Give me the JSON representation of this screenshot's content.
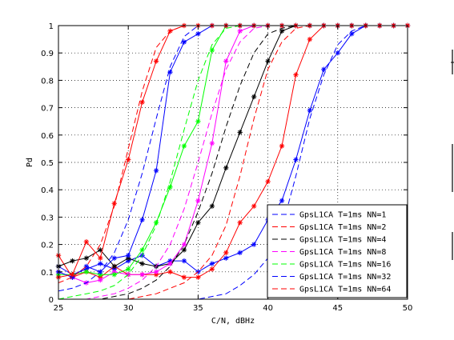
{
  "chart_data": {
    "type": "line",
    "title": "",
    "xlabel": "C/N, dBHz",
    "ylabel": "Pd",
    "xlim": [
      25,
      50
    ],
    "ylim": [
      0,
      1
    ],
    "xticks": [
      "25",
      "30",
      "35",
      "40",
      "45",
      "50"
    ],
    "yticks": [
      "0",
      "0.1",
      "0.2",
      "0.3",
      "0.4",
      "0.5",
      "0.6",
      "0.7",
      "0.8",
      "0.9",
      "1"
    ],
    "grid": true,
    "legend_position": "bottom-right",
    "series": [
      {
        "name": "GpsL1CA T=1ms NN=1",
        "color": "#0000ff",
        "style": "dashed",
        "x": [
          25,
          26,
          27,
          28,
          29,
          30,
          31,
          32,
          33,
          34,
          35,
          36,
          37,
          38,
          39,
          40,
          41,
          42,
          43,
          44,
          45,
          46,
          47,
          48,
          49,
          50
        ],
        "y": [
          0,
          0,
          0,
          0,
          0,
          0,
          0,
          0,
          0,
          0,
          0,
          0.01,
          0.02,
          0.05,
          0.09,
          0.15,
          0.26,
          0.45,
          0.66,
          0.82,
          0.93,
          0.98,
          1,
          1,
          1,
          1
        ]
      },
      {
        "name": "GpsL1CA T=1ms NN=1",
        "color": "#0000ff",
        "style": "solid-markers",
        "x": [
          25,
          26,
          27,
          28,
          29,
          30,
          31,
          32,
          33,
          34,
          35,
          36,
          37,
          38,
          39,
          40,
          41,
          42,
          43,
          44,
          45,
          46,
          47,
          48,
          49,
          50
        ],
        "y": [
          0.12,
          0.09,
          0.11,
          0.13,
          0.11,
          0.14,
          0.16,
          0.12,
          0.14,
          0.14,
          0.1,
          0.13,
          0.15,
          0.17,
          0.2,
          0.29,
          0.36,
          0.51,
          0.69,
          0.84,
          0.9,
          0.97,
          1,
          1,
          1,
          1
        ]
      },
      {
        "name": "GpsL1CA T=1ms NN=2",
        "color": "#ff0000",
        "style": "dashed",
        "x": [
          25,
          26,
          27,
          28,
          29,
          30,
          31,
          32,
          33,
          34,
          35,
          36,
          37,
          38,
          39,
          40,
          41,
          42,
          43,
          44,
          45,
          46,
          47,
          48,
          49,
          50
        ],
        "y": [
          0,
          0,
          0,
          0,
          0,
          0,
          0.01,
          0.02,
          0.04,
          0.06,
          0.1,
          0.16,
          0.27,
          0.45,
          0.66,
          0.84,
          0.94,
          0.99,
          1,
          1,
          1,
          1,
          1,
          1,
          1,
          1
        ]
      },
      {
        "name": "GpsL1CA T=1ms NN=2",
        "color": "#ff0000",
        "style": "solid-markers",
        "x": [
          25,
          26,
          27,
          28,
          29,
          30,
          31,
          32,
          33,
          34,
          35,
          36,
          37,
          38,
          39,
          40,
          41,
          42,
          43,
          44,
          45,
          46,
          47,
          48,
          49,
          50
        ],
        "y": [
          0.16,
          0.08,
          0.1,
          0.08,
          0.12,
          0.09,
          0.09,
          0.09,
          0.1,
          0.08,
          0.08,
          0.11,
          0.17,
          0.28,
          0.34,
          0.43,
          0.56,
          0.82,
          0.95,
          1,
          1,
          1,
          1,
          1,
          1,
          1
        ]
      },
      {
        "name": "GpsL1CA T=1ms NN=4",
        "color": "#000000",
        "style": "dashed",
        "x": [
          25,
          26,
          27,
          28,
          29,
          30,
          31,
          32,
          33,
          34,
          35,
          36,
          37,
          38,
          39,
          40,
          41,
          42,
          43,
          44,
          45,
          46,
          47,
          48,
          49,
          50
        ],
        "y": [
          0,
          0,
          0,
          0,
          0.01,
          0.02,
          0.04,
          0.07,
          0.12,
          0.2,
          0.32,
          0.46,
          0.63,
          0.78,
          0.9,
          0.97,
          0.99,
          1,
          1,
          1,
          1,
          1,
          1,
          1,
          1,
          1
        ]
      },
      {
        "name": "GpsL1CA T=1ms NN=4",
        "color": "#000000",
        "style": "solid-markers",
        "x": [
          25,
          26,
          27,
          28,
          29,
          30,
          31,
          32,
          33,
          34,
          35,
          36,
          37,
          38,
          39,
          40,
          41,
          42,
          43,
          44,
          45,
          46,
          47,
          48,
          49,
          50
        ],
        "y": [
          0.12,
          0.14,
          0.15,
          0.18,
          0.12,
          0.15,
          0.13,
          0.12,
          0.13,
          0.18,
          0.28,
          0.34,
          0.48,
          0.61,
          0.74,
          0.87,
          0.98,
          1,
          1,
          1,
          1,
          1,
          1,
          1,
          1,
          1
        ]
      },
      {
        "name": "GpsL1CA T=1ms NN=8",
        "color": "#ff00ff",
        "style": "dashed",
        "x": [
          25,
          26,
          27,
          28,
          29,
          30,
          31,
          32,
          33,
          34,
          35,
          36,
          37,
          38,
          39,
          40,
          41,
          42,
          43,
          44,
          45,
          46,
          47,
          48,
          49,
          50
        ],
        "y": [
          0,
          0,
          0,
          0.01,
          0.02,
          0.04,
          0.07,
          0.12,
          0.2,
          0.33,
          0.5,
          0.68,
          0.84,
          0.94,
          0.99,
          1,
          1,
          1,
          1,
          1,
          1,
          1,
          1,
          1,
          1,
          1
        ]
      },
      {
        "name": "GpsL1CA T=1ms NN=8",
        "color": "#ff00ff",
        "style": "solid-markers",
        "x": [
          25,
          26,
          27,
          28,
          29,
          30,
          31,
          32,
          33,
          34,
          35,
          36,
          37,
          38,
          39,
          40,
          41,
          42,
          43,
          44,
          45,
          46,
          47,
          48,
          49,
          50
        ],
        "y": [
          0.1,
          0.08,
          0.06,
          0.07,
          0.1,
          0.09,
          0.09,
          0.1,
          0.13,
          0.2,
          0.36,
          0.57,
          0.87,
          0.98,
          1,
          1,
          1,
          1,
          1,
          1,
          1,
          1,
          1,
          1,
          1,
          1
        ]
      },
      {
        "name": "GpsL1CA T=1ms NN=16",
        "color": "#00ff00",
        "style": "dashed",
        "x": [
          25,
          26,
          27,
          28,
          29,
          30,
          31,
          32,
          33,
          34,
          35,
          36,
          37,
          38,
          39,
          40,
          41,
          42,
          43,
          44,
          45,
          46,
          47,
          48,
          49,
          50
        ],
        "y": [
          0,
          0.01,
          0.02,
          0.03,
          0.05,
          0.09,
          0.16,
          0.27,
          0.43,
          0.62,
          0.8,
          0.93,
          0.99,
          1,
          1,
          1,
          1,
          1,
          1,
          1,
          1,
          1,
          1,
          1,
          1,
          1
        ]
      },
      {
        "name": "GpsL1CA T=1ms NN=16",
        "color": "#00ff00",
        "style": "solid-markers",
        "x": [
          25,
          26,
          27,
          28,
          29,
          30,
          31,
          32,
          33,
          34,
          35,
          36,
          37,
          38,
          39,
          40,
          41,
          42,
          43,
          44,
          45,
          46,
          47,
          48,
          49,
          50
        ],
        "y": [
          0.09,
          0.09,
          0.1,
          0.09,
          0.09,
          0.11,
          0.18,
          0.28,
          0.41,
          0.56,
          0.65,
          0.91,
          1,
          1,
          1,
          1,
          1,
          1,
          1,
          1,
          1,
          1,
          1,
          1,
          1,
          1
        ]
      },
      {
        "name": "GpsL1CA T=1ms NN=32",
        "color": "#0000ff",
        "style": "dashed",
        "x": [
          25,
          26,
          27,
          28,
          29,
          30,
          31,
          32,
          33,
          34,
          35,
          36,
          37,
          38,
          39,
          40,
          41,
          42,
          43,
          44,
          45,
          46,
          47,
          48,
          49,
          50
        ],
        "y": [
          0.03,
          0.04,
          0.06,
          0.1,
          0.17,
          0.29,
          0.46,
          0.66,
          0.85,
          0.96,
          1,
          1,
          1,
          1,
          1,
          1,
          1,
          1,
          1,
          1,
          1,
          1,
          1,
          1,
          1,
          1
        ]
      },
      {
        "name": "GpsL1CA T=1ms NN=32",
        "color": "#0000ff",
        "style": "solid-markers",
        "x": [
          25,
          26,
          27,
          28,
          29,
          30,
          31,
          32,
          33,
          34,
          35,
          36,
          37,
          38,
          39,
          40,
          41,
          42,
          43,
          44,
          45,
          46,
          47,
          48,
          49,
          50
        ],
        "y": [
          0.1,
          0.08,
          0.12,
          0.1,
          0.15,
          0.16,
          0.29,
          0.47,
          0.83,
          0.94,
          0.97,
          1,
          1,
          1,
          1,
          1,
          1,
          1,
          1,
          1,
          1,
          1,
          1,
          1,
          1,
          1
        ]
      },
      {
        "name": "GpsL1CA T=1ms NN=64",
        "color": "#ff0000",
        "style": "dashed",
        "x": [
          25,
          26,
          27,
          28,
          29,
          30,
          31,
          32,
          33,
          34,
          35,
          36,
          37,
          38,
          39,
          40,
          41,
          42,
          43,
          44,
          45,
          46,
          47,
          48,
          49,
          50
        ],
        "y": [
          0.06,
          0.08,
          0.12,
          0.2,
          0.34,
          0.55,
          0.76,
          0.92,
          0.98,
          1,
          1,
          1,
          1,
          1,
          1,
          1,
          1,
          1,
          1,
          1,
          1,
          1,
          1,
          1,
          1,
          1
        ]
      },
      {
        "name": "GpsL1CA T=1ms NN=64",
        "color": "#ff0000",
        "style": "solid-markers",
        "x": [
          25,
          26,
          27,
          28,
          29,
          30,
          31,
          32,
          33,
          34,
          35,
          36,
          37,
          38,
          39,
          40,
          41,
          42,
          43,
          44,
          45,
          46,
          47,
          48,
          49,
          50
        ],
        "y": [
          0.08,
          0.09,
          0.21,
          0.15,
          0.35,
          0.51,
          0.72,
          0.87,
          0.98,
          1,
          1,
          1,
          1,
          1,
          1,
          1,
          1,
          1,
          1,
          1,
          1,
          1,
          1,
          1,
          1,
          1
        ]
      }
    ],
    "legend": [
      {
        "label": "GpsL1CA T=1ms NN=1",
        "color": "#0000ff"
      },
      {
        "label": "GpsL1CA T=1ms NN=2",
        "color": "#ff0000"
      },
      {
        "label": "GpsL1CA T=1ms NN=4",
        "color": "#000000"
      },
      {
        "label": "GpsL1CA T=1ms NN=8",
        "color": "#ff00ff"
      },
      {
        "label": "GpsL1CA T=1ms NN=16",
        "color": "#00ff00"
      },
      {
        "label": "GpsL1CA T=1ms NN=32",
        "color": "#0000ff"
      },
      {
        "label": "GpsL1CA T=1ms NN=64",
        "color": "#ff0000"
      }
    ]
  }
}
